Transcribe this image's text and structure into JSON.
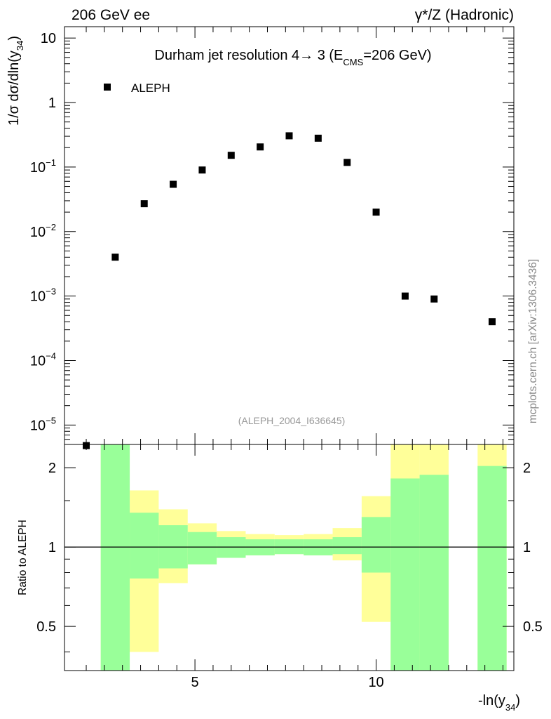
{
  "header": {
    "left": "206 GeV ee",
    "right": "γ*/Z (Hadronic)"
  },
  "watermark": "mcplots.cern.ch [arXiv:1306.3436]",
  "chart_data": [
    {
      "type": "scatter",
      "scale": "log",
      "title": "Durham jet resolution 4→ 3 (E_CMS=206 GeV)",
      "title_parts": {
        "main": "Durham jet resolution 4→ 3 (E",
        "sub": "CMS",
        "tail": "=206 GeV)"
      },
      "ylabel": "1/σ dσ/dln(y_34)",
      "ylabel_parts": {
        "main": "1/σ  dσ/dln(y",
        "sub": "34",
        "tail": ")"
      },
      "analysis_id": "(ALEPH_2004_I636645)",
      "xlim": [
        1.4,
        13.8
      ],
      "ylim": [
        5e-06,
        15
      ],
      "y_ticks": [
        {
          "value": 10,
          "base": "10",
          "exp": ""
        },
        {
          "value": 1,
          "base": "1",
          "exp": ""
        },
        {
          "value": 0.1,
          "base": "10",
          "exp": "−1"
        },
        {
          "value": 0.01,
          "base": "10",
          "exp": "−2"
        },
        {
          "value": 0.001,
          "base": "10",
          "exp": "−3"
        },
        {
          "value": 0.0001,
          "base": "10",
          "exp": "−4"
        },
        {
          "value": 1e-05,
          "base": "10",
          "exp": "−5"
        }
      ],
      "legend": {
        "entries": [
          "ALEPH"
        ],
        "placement": "top-left"
      },
      "series": [
        {
          "name": "ALEPH",
          "x": [
            2.0,
            2.8,
            3.6,
            4.4,
            5.2,
            6.0,
            6.8,
            7.6,
            8.4,
            9.2,
            10.0,
            10.8,
            11.6,
            13.2
          ],
          "y": [
            4.8e-06,
            0.004,
            0.027,
            0.054,
            0.09,
            0.152,
            0.205,
            0.305,
            0.28,
            0.118,
            0.02,
            0.001,
            0.0009,
            0.0004
          ]
        }
      ]
    },
    {
      "type": "area",
      "ylabel": "Ratio to ALEPH",
      "xlabel": "-ln(y_34)",
      "xlabel_parts": {
        "main": "-ln(y",
        "sub": "34",
        "tail": ")"
      },
      "xlim": [
        1.4,
        13.8
      ],
      "ylim": [
        0.34,
        2.45
      ],
      "x_ticks": [
        5,
        10
      ],
      "y_ticks": [
        0.5,
        1,
        2
      ],
      "reference_line": 1,
      "bands": {
        "edges": [
          2.4,
          3.2,
          4.0,
          4.8,
          5.6,
          6.4,
          7.2,
          8.0,
          8.8,
          9.6,
          10.4,
          11.2,
          12.0,
          12.8,
          13.6
        ],
        "yellow": [
          [
            0.3,
            2.6
          ],
          [
            0.4,
            1.64
          ],
          [
            0.73,
            1.39
          ],
          [
            0.86,
            1.23
          ],
          [
            0.91,
            1.15
          ],
          [
            0.93,
            1.12
          ],
          [
            0.94,
            1.11
          ],
          [
            0.93,
            1.12
          ],
          [
            0.89,
            1.18
          ],
          [
            0.52,
            1.56
          ],
          [
            0.3,
            2.6
          ],
          [
            0.3,
            2.6
          ],
          null,
          [
            0.3,
            2.6
          ]
        ],
        "green": [
          [
            0.3,
            2.6
          ],
          [
            0.76,
            1.35
          ],
          [
            0.83,
            1.21
          ],
          [
            0.86,
            1.14
          ],
          [
            0.91,
            1.09
          ],
          [
            0.93,
            1.07
          ],
          [
            0.94,
            1.07
          ],
          [
            0.93,
            1.07
          ],
          [
            0.94,
            1.09
          ],
          [
            0.8,
            1.3
          ],
          [
            0.3,
            1.82
          ],
          [
            0.3,
            1.88
          ],
          null,
          [
            0.3,
            2.03
          ]
        ]
      }
    }
  ]
}
